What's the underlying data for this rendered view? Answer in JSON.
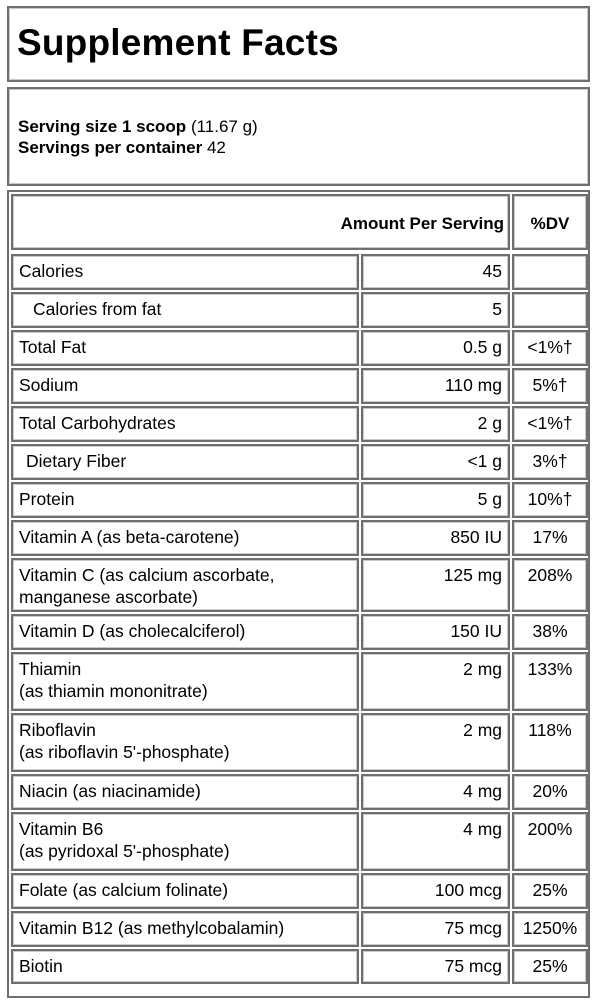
{
  "title": "Supplement Facts",
  "serving": {
    "size_label": "Serving size",
    "size_value": "1 scoop",
    "size_weight": "(11.67 g)",
    "per_container_label": "Servings per container",
    "per_container_value": "42"
  },
  "headers": {
    "amount": "Amount Per Serving",
    "dv": "%DV"
  },
  "rows": [
    {
      "name": [
        "Calories"
      ],
      "amount": "45",
      "dv": ""
    },
    {
      "name": [
        "Calories from fat"
      ],
      "amount": "5",
      "dv": ""
    },
    {
      "name": [
        "Total Fat"
      ],
      "amount": "0.5 g",
      "dv": "<1%†"
    },
    {
      "name": [
        "Sodium"
      ],
      "amount": "110 mg",
      "dv": "5%†"
    },
    {
      "name": [
        "Total Carbohydrates"
      ],
      "amount": "2 g",
      "dv": "<1%†"
    },
    {
      "name": [
        "Dietary Fiber"
      ],
      "amount": "<1 g",
      "dv": "3%†"
    },
    {
      "name": [
        "Protein"
      ],
      "amount": "5 g",
      "dv": "10%†"
    },
    {
      "name": [
        "Vitamin A (as beta-carotene)"
      ],
      "amount": "850 IU",
      "dv": "17%"
    },
    {
      "name": [
        "Vitamin C (as calcium ascorbate,",
        "manganese ascorbate)"
      ],
      "amount": "125 mg",
      "dv": "208%"
    },
    {
      "name": [
        "Vitamin D (as cholecalciferol)"
      ],
      "amount": "150 IU",
      "dv": "38%"
    },
    {
      "name": [
        "Thiamin",
        "(as thiamin mononitrate)"
      ],
      "amount": "2 mg",
      "dv": "133%"
    },
    {
      "name": [
        "Riboflavin",
        "(as riboflavin 5'-phosphate)"
      ],
      "amount": "2 mg",
      "dv": "118%"
    },
    {
      "name": [
        "Niacin (as niacinamide)"
      ],
      "amount": "4 mg",
      "dv": "20%"
    },
    {
      "name": [
        "Vitamin B6",
        "(as pyridoxal 5'-phosphate)"
      ],
      "amount": "4 mg",
      "dv": "200%"
    },
    {
      "name": [
        "Folate (as calcium folinate)"
      ],
      "amount": "100 mcg",
      "dv": "25%"
    },
    {
      "name": [
        "Vitamin B12 (as methylcobalamin)"
      ],
      "amount": "75 mcg",
      "dv": "1250%"
    },
    {
      "name": [
        "Biotin"
      ],
      "amount": "75 mcg",
      "dv": "25%"
    }
  ]
}
